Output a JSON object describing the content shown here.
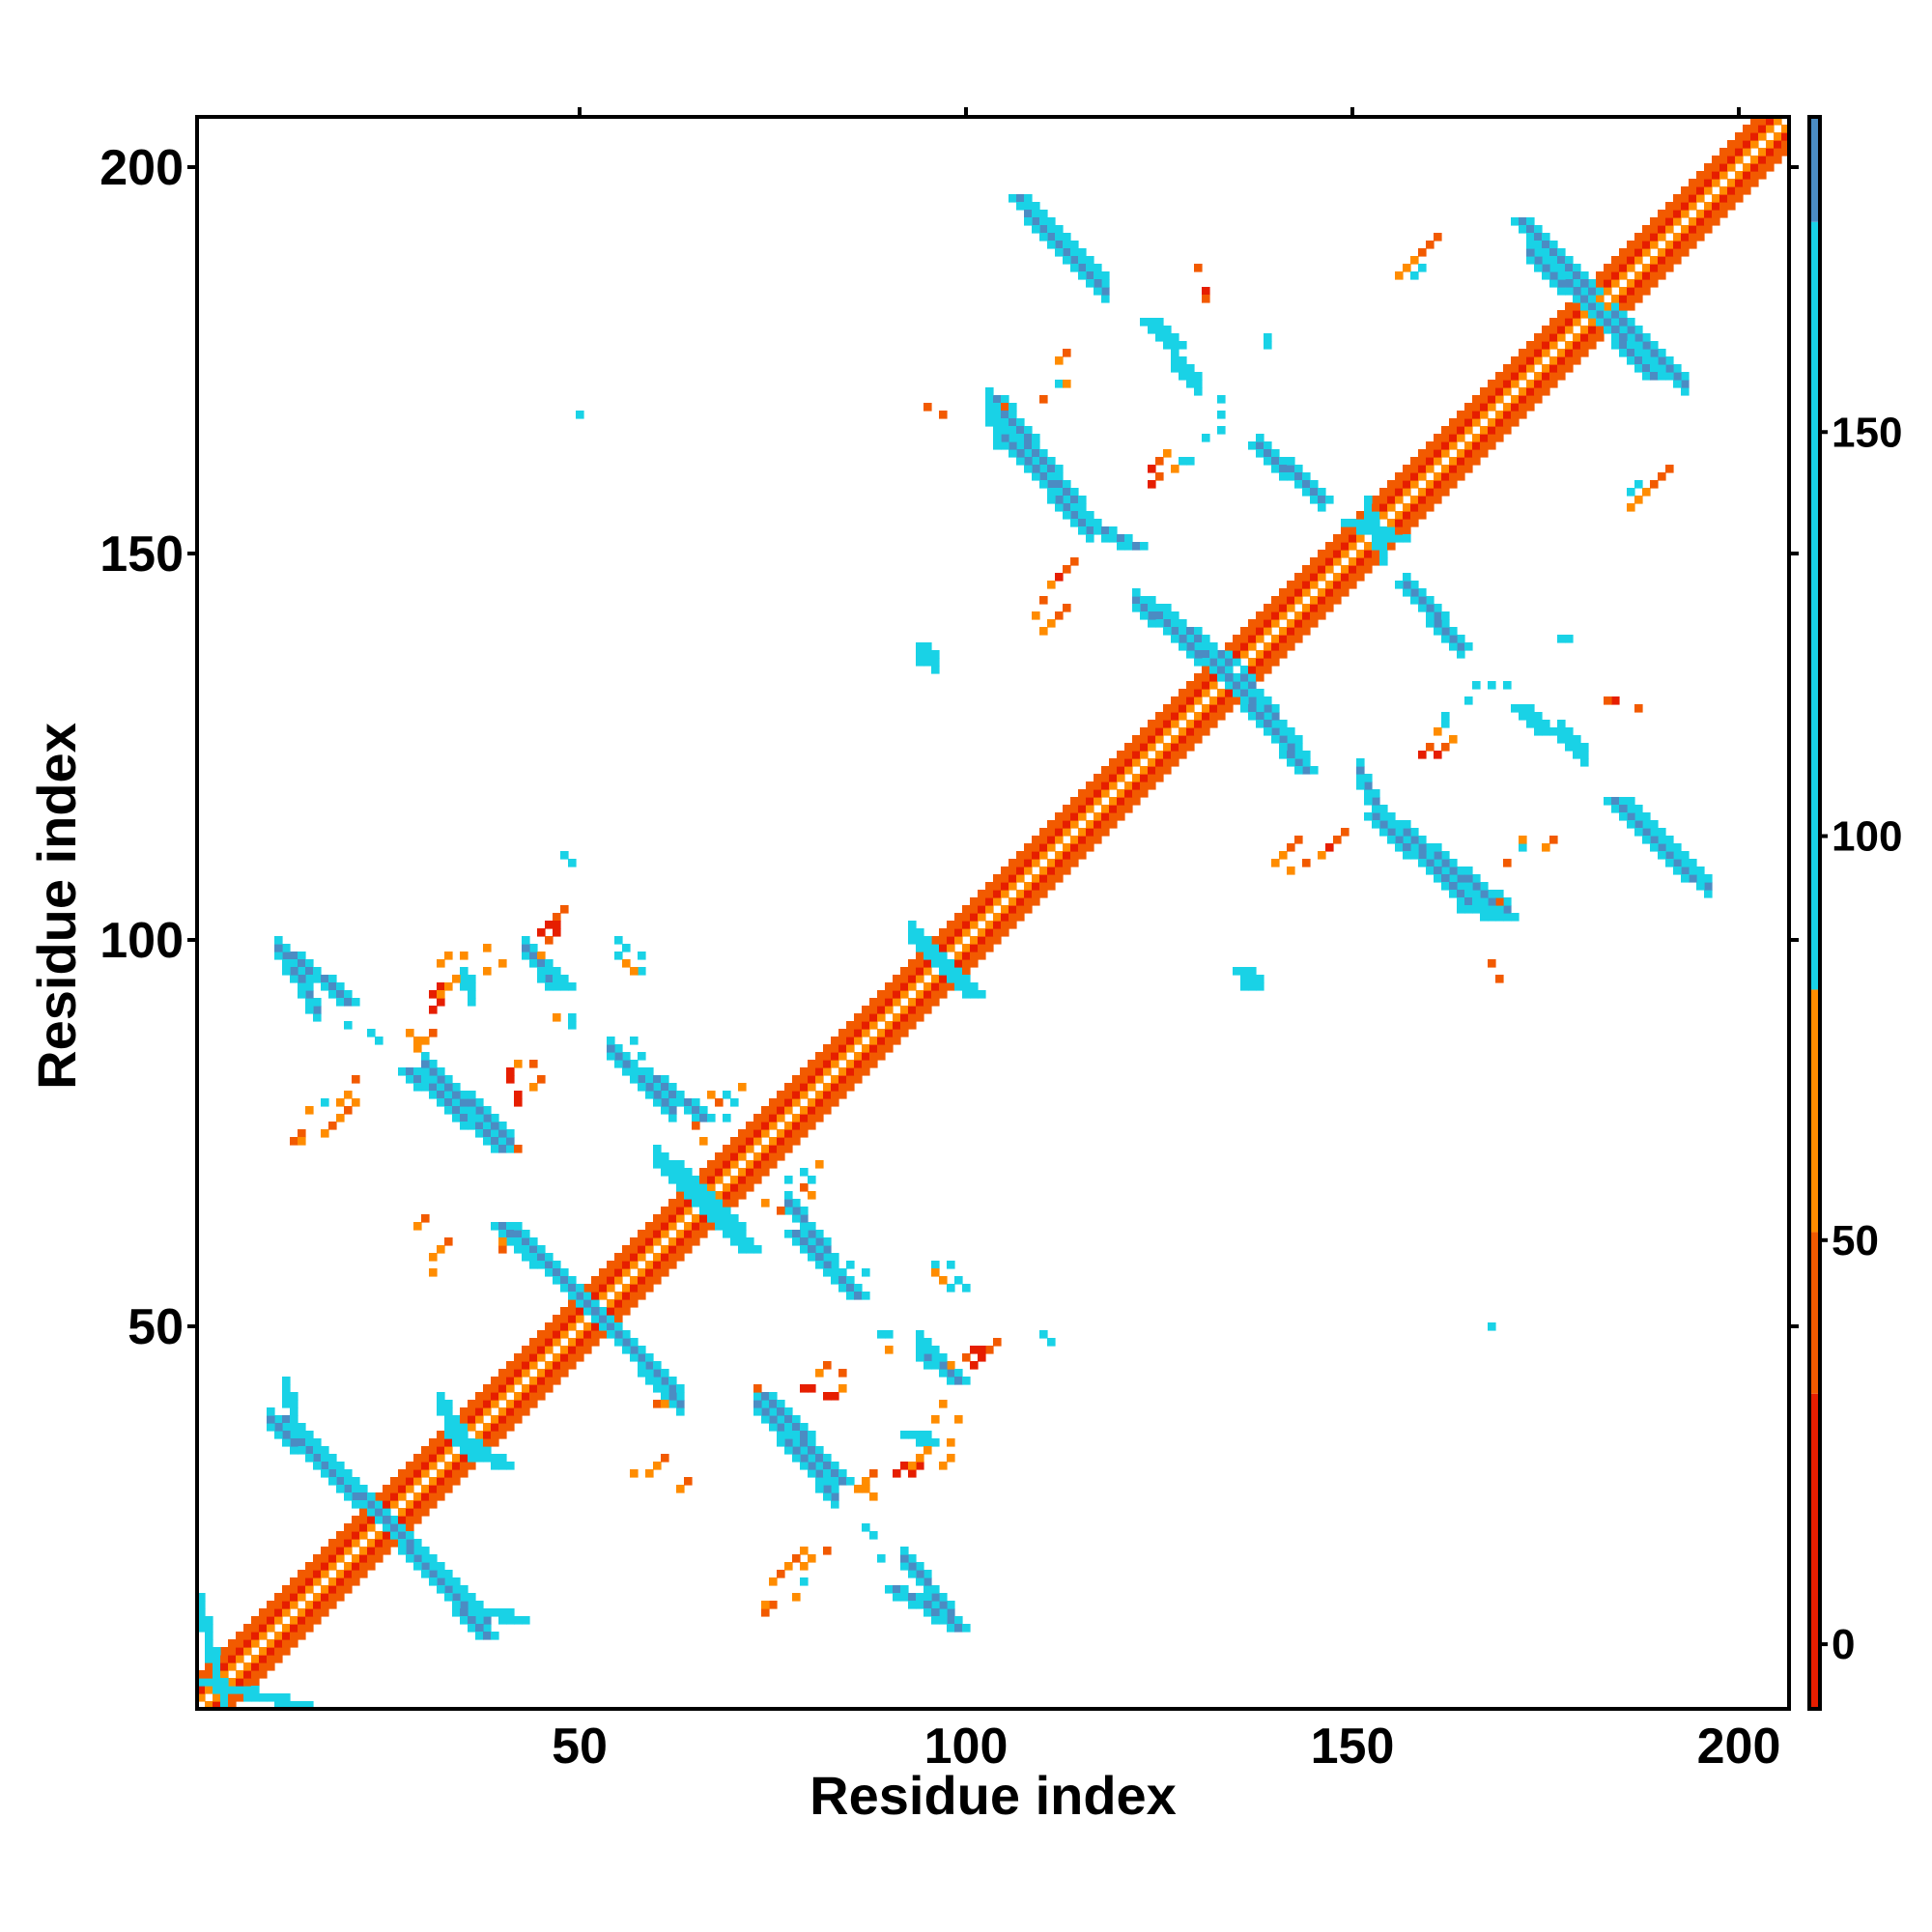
{
  "chart_data": {
    "type": "heatmap",
    "title": "",
    "xlabel": "Residue index",
    "ylabel": "Residue index",
    "xlim": [
      1,
      206
    ],
    "ylim": [
      1,
      206
    ],
    "x_ticks": [
      50,
      100,
      150,
      200
    ],
    "y_ticks": [
      50,
      100,
      150,
      200
    ],
    "symmetric": true,
    "colorbar": {
      "range": [
        -8,
        189
      ],
      "ticks": [
        0,
        50,
        100,
        150
      ],
      "bands": [
        {
          "from": -8,
          "to": 31,
          "color": "#e61e00"
        },
        {
          "from": 31,
          "to": 51,
          "color": "#f25a00"
        },
        {
          "from": 51,
          "to": 81,
          "color": "#ff8c00"
        },
        {
          "from": 81,
          "to": 176,
          "color": "#19d2e6"
        },
        {
          "from": 176,
          "to": 189,
          "color": "#4b8cc3"
        }
      ]
    },
    "diagonal_bands": [
      {
        "offset_min": 1,
        "offset_max": 1,
        "color": "#ff8c00"
      },
      {
        "offset_min": 2,
        "offset_max": 2,
        "color": "#e61e00"
      },
      {
        "offset_min": 3,
        "offset_max": 4,
        "color": "#f25a00"
      }
    ],
    "segments": [
      {
        "from": [
          1,
          4
        ],
        "to": [
          14,
          1
        ],
        "width": 3,
        "color": "#19d2e6"
      },
      {
        "from": [
          12,
          38
        ],
        "to": [
          25,
          25
        ],
        "width": 3,
        "color": "#4b8cc3"
      },
      {
        "from": [
          25,
          25
        ],
        "to": [
          38,
          10
        ],
        "width": 3,
        "color": "#4b8cc3"
      },
      {
        "from": [
          34,
          36
        ],
        "to": [
          40,
          32
        ],
        "width": 2,
        "color": "#19d2e6"
      },
      {
        "from": [
          40,
          63
        ],
        "to": [
          52,
          52
        ],
        "width": 3,
        "color": "#4b8cc3"
      },
      {
        "from": [
          52,
          52
        ],
        "to": [
          62,
          42
        ],
        "width": 3,
        "color": "#4b8cc3"
      },
      {
        "from": [
          38,
          13
        ],
        "to": [
          42,
          12
        ],
        "width": 2,
        "color": "#19d2e6"
      },
      {
        "from": [
          28,
          83
        ],
        "to": [
          40,
          73
        ],
        "width": 3,
        "color": "#4b8cc3"
      },
      {
        "from": [
          13,
          98
        ],
        "to": [
          20,
          92
        ],
        "width": 3,
        "color": "#4b8cc3"
      },
      {
        "from": [
          44,
          98
        ],
        "to": [
          48,
          94
        ],
        "width": 3,
        "color": "#19d2e6"
      },
      {
        "from": [
          58,
          83
        ],
        "to": [
          66,
          77
        ],
        "width": 3,
        "color": "#4b8cc3"
      },
      {
        "from": [
          62,
          71
        ],
        "to": [
          72,
          60
        ],
        "width": 3,
        "color": "#19d2e6"
      },
      {
        "from": [
          78,
          62
        ],
        "to": [
          86,
          54
        ],
        "width": 3,
        "color": "#4b8cc3"
      },
      {
        "from": [
          74,
          41
        ],
        "to": [
          84,
          30
        ],
        "width": 3,
        "color": "#4b8cc3"
      },
      {
        "from": [
          91,
          16
        ],
        "to": [
          99,
          11
        ],
        "width": 3,
        "color": "#4b8cc3"
      },
      {
        "from": [
          95,
          46
        ],
        "to": [
          99,
          43
        ],
        "width": 3,
        "color": "#4b8cc3"
      },
      {
        "from": [
          97,
          97
        ],
        "to": [
          101,
          93
        ],
        "width": 3,
        "color": "#19d2e6"
      },
      {
        "from": [
          93,
          36
        ],
        "to": [
          95,
          35
        ],
        "width": 2,
        "color": "#19d2e6"
      },
      {
        "from": [
          107,
          196
        ],
        "to": [
          117,
          186
        ],
        "width": 3,
        "color": "#4b8cc3"
      },
      {
        "from": [
          104,
          170
        ],
        "to": [
          115,
          155
        ],
        "width": 3,
        "color": "#4b8cc3"
      },
      {
        "from": [
          115,
          154
        ],
        "to": [
          122,
          151
        ],
        "width": 3,
        "color": "#4b8cc3"
      },
      {
        "from": [
          123,
          144
        ],
        "to": [
          134,
          136
        ],
        "width": 3,
        "color": "#4b8cc3"
      },
      {
        "from": [
          134,
          134
        ],
        "to": [
          144,
          122
        ],
        "width": 3,
        "color": "#4b8cc3"
      },
      {
        "from": [
          138,
          164
        ],
        "to": [
          146,
          157
        ],
        "width": 3,
        "color": "#4b8cc3"
      },
      {
        "from": [
          124,
          180
        ],
        "to": [
          127,
          177
        ],
        "width": 3,
        "color": "#19d2e6"
      },
      {
        "from": [
          153,
          116
        ],
        "to": [
          165,
          105
        ],
        "width": 3,
        "color": "#4b8cc3"
      },
      {
        "from": [
          165,
          104
        ],
        "to": [
          170,
          103
        ],
        "width": 3,
        "color": "#19d2e6"
      },
      {
        "from": [
          157,
          146
        ],
        "to": [
          164,
          138
        ],
        "width": 3,
        "color": "#4b8cc3"
      },
      {
        "from": [
          172,
          193
        ],
        "to": [
          181,
          184
        ],
        "width": 3,
        "color": "#4b8cc3"
      },
      {
        "from": [
          180,
          183
        ],
        "to": [
          189,
          173
        ],
        "width": 3,
        "color": "#4b8cc3"
      },
      {
        "from": [
          184,
          118
        ],
        "to": [
          194,
          108
        ],
        "width": 3,
        "color": "#4b8cc3"
      },
      {
        "from": [
          172,
          130
        ],
        "to": [
          175,
          127
        ],
        "width": 3,
        "color": "#19d2e6"
      },
      {
        "from": [
          150,
          154
        ],
        "to": [
          156,
          152
        ],
        "width": 3,
        "color": "#19d2e6"
      },
      {
        "from": [
          136,
          96
        ],
        "to": [
          137,
          94
        ],
        "width": 2,
        "color": "#19d2e6"
      }
    ],
    "points": [
      {
        "x": 13,
        "y": 74,
        "c": "#f25a00"
      },
      {
        "x": 14,
        "y": 75,
        "c": "#f25a00"
      },
      {
        "x": 15,
        "y": 78,
        "c": "#ff8c00"
      },
      {
        "x": 17,
        "y": 79,
        "c": "#19d2e6"
      },
      {
        "x": 19,
        "y": 79,
        "c": "#ff8c00"
      },
      {
        "x": 20,
        "y": 80,
        "c": "#ff8c00"
      },
      {
        "x": 21,
        "y": 82,
        "c": "#f25a00"
      },
      {
        "x": 23,
        "y": 88,
        "c": "#19d2e6"
      },
      {
        "x": 24,
        "y": 87,
        "c": "#19d2e6"
      },
      {
        "x": 28,
        "y": 88,
        "c": "#ff8c00"
      },
      {
        "x": 29,
        "y": 87,
        "c": "#ff8c00"
      },
      {
        "x": 31,
        "y": 93,
        "c": "#e61e00"
      },
      {
        "x": 32,
        "y": 94,
        "c": "#e61e00"
      },
      {
        "x": 32,
        "y": 97,
        "c": "#ff8c00"
      },
      {
        "x": 33,
        "y": 98,
        "c": "#ff8c00"
      },
      {
        "x": 35,
        "y": 98,
        "c": "#ff8c00"
      },
      {
        "x": 38,
        "y": 99,
        "c": "#ff8c00"
      },
      {
        "x": 41,
        "y": 83,
        "c": "#e61e00"
      },
      {
        "x": 41,
        "y": 82,
        "c": "#e61e00"
      },
      {
        "x": 42,
        "y": 84,
        "c": "#ff8c00"
      },
      {
        "x": 44,
        "y": 84,
        "c": "#f25a00"
      },
      {
        "x": 45,
        "y": 101,
        "c": "#e61e00"
      },
      {
        "x": 46,
        "y": 102,
        "c": "#e61e00"
      },
      {
        "x": 47,
        "y": 103,
        "c": "#f25a00"
      },
      {
        "x": 48,
        "y": 104,
        "c": "#f25a00"
      },
      {
        "x": 48,
        "y": 111,
        "c": "#19d2e6"
      },
      {
        "x": 49,
        "y": 90,
        "c": "#19d2e6"
      },
      {
        "x": 49,
        "y": 110,
        "c": "#19d2e6"
      },
      {
        "x": 55,
        "y": 98,
        "c": "#19d2e6"
      },
      {
        "x": 58,
        "y": 96,
        "c": "#19d2e6"
      },
      {
        "x": 58,
        "y": 98,
        "c": "#19d2e6"
      },
      {
        "x": 57,
        "y": 87,
        "c": "#19d2e6"
      },
      {
        "x": 29,
        "y": 63,
        "c": "#ff8c00"
      },
      {
        "x": 30,
        "y": 64,
        "c": "#f25a00"
      },
      {
        "x": 40,
        "y": 60,
        "c": "#f25a00"
      },
      {
        "x": 40,
        "y": 61,
        "c": "#ff8c00"
      },
      {
        "x": 59,
        "y": 31,
        "c": "#ff8c00"
      },
      {
        "x": 60,
        "y": 32,
        "c": "#ff8c00"
      },
      {
        "x": 61,
        "y": 33,
        "c": "#f25a00"
      },
      {
        "x": 57,
        "y": 31,
        "c": "#ff8c00"
      },
      {
        "x": 65,
        "y": 76,
        "c": "#f25a00"
      },
      {
        "x": 66,
        "y": 74,
        "c": "#ff8c00"
      },
      {
        "x": 67,
        "y": 80,
        "c": "#ff8c00"
      },
      {
        "x": 68,
        "y": 79,
        "c": "#f25a00"
      },
      {
        "x": 69,
        "y": 80,
        "c": "#19d2e6"
      },
      {
        "x": 71,
        "y": 81,
        "c": "#ff8c00"
      },
      {
        "x": 73,
        "y": 42,
        "c": "#f25a00"
      },
      {
        "x": 74,
        "y": 14,
        "c": "#ff8c00"
      },
      {
        "x": 75,
        "y": 17,
        "c": "#ff8c00"
      },
      {
        "x": 76,
        "y": 18,
        "c": "#f25a00"
      },
      {
        "x": 77,
        "y": 19,
        "c": "#ff8c00"
      },
      {
        "x": 78,
        "y": 20,
        "c": "#f25a00"
      },
      {
        "x": 79,
        "y": 21,
        "c": "#ff8c00"
      },
      {
        "x": 77,
        "y": 69,
        "c": "#19d2e6"
      },
      {
        "x": 79,
        "y": 70,
        "c": "#19d2e6"
      },
      {
        "x": 79,
        "y": 42,
        "c": "#e61e00"
      },
      {
        "x": 80,
        "y": 42,
        "c": "#e61e00"
      },
      {
        "x": 81,
        "y": 44,
        "c": "#ff8c00"
      },
      {
        "x": 82,
        "y": 45,
        "c": "#f25a00"
      },
      {
        "x": 83,
        "y": 57,
        "c": "#19d2e6"
      },
      {
        "x": 85,
        "y": 58,
        "c": "#19d2e6"
      },
      {
        "x": 86,
        "y": 29,
        "c": "#ff8c00"
      },
      {
        "x": 87,
        "y": 30,
        "c": "#ff8c00"
      },
      {
        "x": 88,
        "y": 31,
        "c": "#f25a00"
      },
      {
        "x": 89,
        "y": 20,
        "c": "#19d2e6"
      },
      {
        "x": 89,
        "y": 49,
        "c": "#19d2e6"
      },
      {
        "x": 90,
        "y": 47,
        "c": "#ff8c00"
      },
      {
        "x": 91,
        "y": 31,
        "c": "#e61e00"
      },
      {
        "x": 92,
        "y": 32,
        "c": "#e61e00"
      },
      {
        "x": 93,
        "y": 32,
        "c": "#ff8c00"
      },
      {
        "x": 94,
        "y": 33,
        "c": "#ff8c00"
      },
      {
        "x": 95,
        "y": 34,
        "c": "#ff8c00"
      },
      {
        "x": 96,
        "y": 38,
        "c": "#ff8c00"
      },
      {
        "x": 97,
        "y": 40,
        "c": "#ff8c00"
      },
      {
        "x": 96,
        "y": 57,
        "c": "#ff8c00"
      },
      {
        "x": 97,
        "y": 56,
        "c": "#ff8c00"
      },
      {
        "x": 98,
        "y": 55,
        "c": "#19d2e6"
      },
      {
        "x": 99,
        "y": 56,
        "c": "#19d2e6"
      },
      {
        "x": 100,
        "y": 55,
        "c": "#19d2e6"
      },
      {
        "x": 98,
        "y": 45,
        "c": "#ff8c00"
      },
      {
        "x": 100,
        "y": 46,
        "c": "#f25a00"
      },
      {
        "x": 101,
        "y": 47,
        "c": "#e61e00"
      },
      {
        "x": 102,
        "y": 47,
        "c": "#e61e00"
      },
      {
        "x": 101,
        "y": 93,
        "c": "#19d2e6"
      },
      {
        "x": 112,
        "y": 147,
        "c": "#e61e00"
      },
      {
        "x": 111,
        "y": 146,
        "c": "#ff8c00"
      },
      {
        "x": 110,
        "y": 144,
        "c": "#f25a00"
      },
      {
        "x": 109,
        "y": 142,
        "c": "#ff8c00"
      },
      {
        "x": 113,
        "y": 148,
        "c": "#f25a00"
      },
      {
        "x": 112,
        "y": 175,
        "c": "#ff8c00"
      },
      {
        "x": 113,
        "y": 176,
        "c": "#f25a00"
      },
      {
        "x": 110,
        "y": 170,
        "c": "#f25a00"
      },
      {
        "x": 95,
        "y": 169,
        "c": "#f25a00"
      },
      {
        "x": 124,
        "y": 161,
        "c": "#e61e00"
      },
      {
        "x": 125,
        "y": 162,
        "c": "#f25a00"
      },
      {
        "x": 126,
        "y": 163,
        "c": "#ff8c00"
      },
      {
        "x": 128,
        "y": 162,
        "c": "#19d2e6"
      },
      {
        "x": 131,
        "y": 165,
        "c": "#19d2e6"
      },
      {
        "x": 130,
        "y": 187,
        "c": "#f25a00"
      },
      {
        "x": 133,
        "y": 170,
        "c": "#19d2e6"
      },
      {
        "x": 139,
        "y": 178,
        "c": "#19d2e6"
      },
      {
        "x": 140,
        "y": 110,
        "c": "#ff8c00"
      },
      {
        "x": 141,
        "y": 111,
        "c": "#ff8c00"
      },
      {
        "x": 142,
        "y": 112,
        "c": "#f25a00"
      },
      {
        "x": 143,
        "y": 113,
        "c": "#f25a00"
      },
      {
        "x": 149,
        "y": 114,
        "c": "#f25a00"
      },
      {
        "x": 158,
        "y": 188,
        "c": "#ff8c00"
      },
      {
        "x": 159,
        "y": 189,
        "c": "#ff8c00"
      },
      {
        "x": 160,
        "y": 190,
        "c": "#f25a00"
      },
      {
        "x": 161,
        "y": 191,
        "c": "#f25a00"
      },
      {
        "x": 159,
        "y": 124,
        "c": "#e61e00"
      },
      {
        "x": 160,
        "y": 125,
        "c": "#f25a00"
      },
      {
        "x": 161,
        "y": 127,
        "c": "#ff8c00"
      },
      {
        "x": 162,
        "y": 129,
        "c": "#19d2e6"
      },
      {
        "x": 166,
        "y": 133,
        "c": "#19d2e6"
      },
      {
        "x": 168,
        "y": 133,
        "c": "#19d2e6"
      },
      {
        "x": 168,
        "y": 97,
        "c": "#f25a00"
      },
      {
        "x": 169,
        "y": 105,
        "c": "#f25a00"
      },
      {
        "x": 172,
        "y": 112,
        "c": "#19d2e6"
      },
      {
        "x": 172,
        "y": 113,
        "c": "#ff8c00"
      },
      {
        "x": 168,
        "y": 50,
        "c": "#19d2e6"
      },
      {
        "x": 177,
        "y": 139,
        "c": "#19d2e6"
      },
      {
        "x": 184,
        "y": 131,
        "c": "#e61e00"
      },
      {
        "x": 183,
        "y": 131,
        "c": "#f25a00"
      },
      {
        "x": 186,
        "y": 156,
        "c": "#ff8c00"
      },
      {
        "x": 187,
        "y": 157,
        "c": "#ff8c00"
      },
      {
        "x": 188,
        "y": 158,
        "c": "#ff8c00"
      },
      {
        "x": 189,
        "y": 159,
        "c": "#f25a00"
      },
      {
        "x": 190,
        "y": 160,
        "c": "#f25a00"
      },
      {
        "x": 186,
        "y": 158,
        "c": "#19d2e6"
      },
      {
        "x": 187,
        "y": 159,
        "c": "#19d2e6"
      }
    ]
  }
}
